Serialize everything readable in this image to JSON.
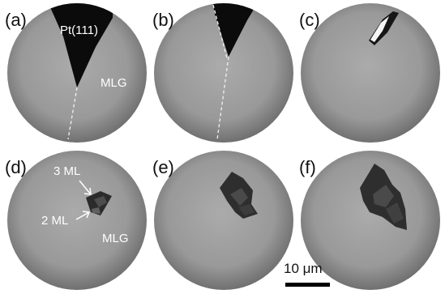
{
  "figure": {
    "panels": [
      {
        "label": "(a)"
      },
      {
        "label": "(b)"
      },
      {
        "label": "(c)"
      },
      {
        "label": "(d)"
      },
      {
        "label": "(e)"
      },
      {
        "label": "(f)"
      }
    ],
    "annotations": {
      "substrate": "Pt(111)",
      "graphene_top": "MLG",
      "three_layer": "3 ML",
      "two_layer": "2 ML",
      "graphene_bottom": "MLG"
    },
    "scale_bar": {
      "label": "10 μm"
    }
  },
  "colors": {
    "disk_center": "#a9a9a9",
    "disk_edge": "#6f6f6f",
    "substrate": "#0b0b0b",
    "boundary_line": "#f2f2f2",
    "multilayer_dark": "#2b2b2b",
    "multilayer_mid": "#4d4d4d"
  }
}
